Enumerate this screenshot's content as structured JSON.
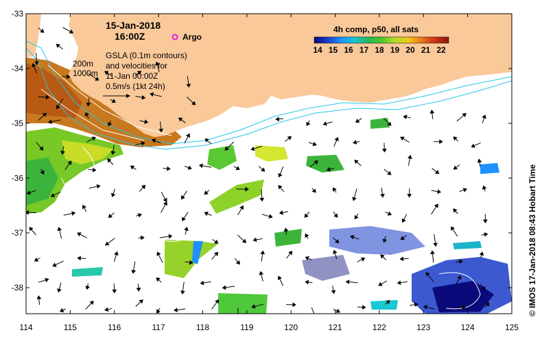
{
  "map": {
    "date": "15-Jan-2018",
    "time": "16:00Z",
    "argo_label": "Argo",
    "gsla_lines": [
      "GSLA (0.1m contours)",
      "and velocities for",
      "11-Jan 00:00Z",
      "0.5m/s (1kt 24h)"
    ],
    "isobath_200": "200m",
    "isobath_1000": "1000m",
    "colorbar_title": "4h comp, p50, all sats",
    "colorbar_ticks": [
      "14",
      "15",
      "16",
      "17",
      "18",
      "19",
      "20",
      "21",
      "22"
    ],
    "colorbar_colors": [
      "#0a0a7a",
      "#1a3cc8",
      "#1e90ff",
      "#18c8d2",
      "#22b85a",
      "#4cc828",
      "#b4dc2a",
      "#f0c814",
      "#e8781c",
      "#c83214",
      "#8c1a0a"
    ],
    "x_ticks": [
      "114",
      "115",
      "116",
      "117",
      "118",
      "119",
      "120",
      "121",
      "122",
      "123",
      "124",
      "125"
    ],
    "y_ticks": [
      "-33",
      "-34",
      "-35",
      "-36",
      "-37",
      "-38"
    ],
    "credit": "© IMOS 17-Jan-2018 08:43 Hobart Time",
    "land_color": "#f9c99a",
    "argo_color": "#e020e0"
  }
}
